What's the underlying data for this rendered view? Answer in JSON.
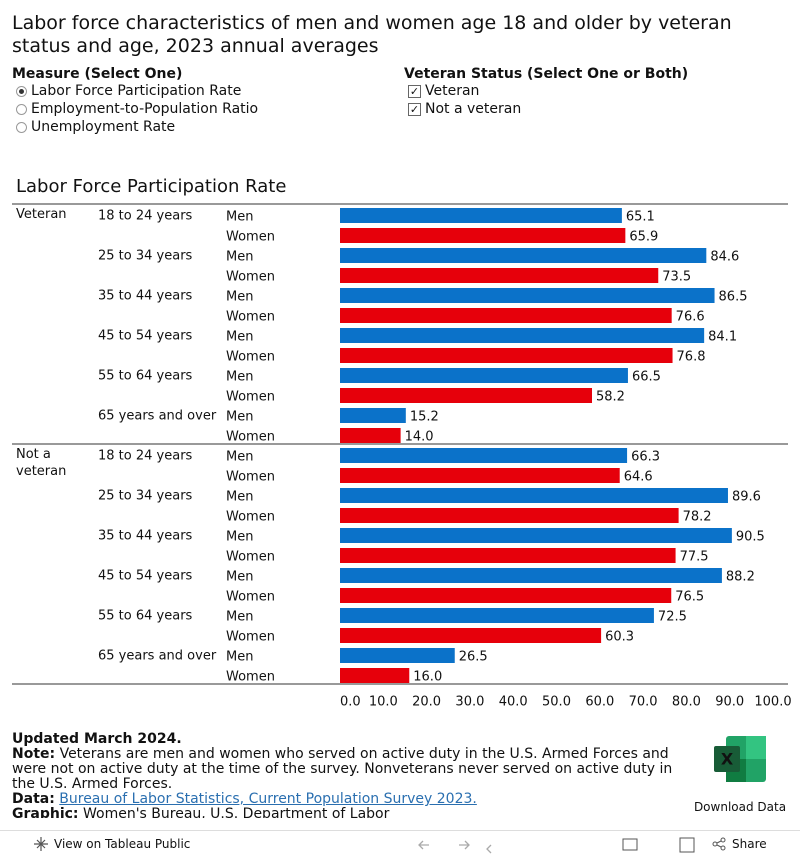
{
  "header": {
    "title": "Labor force characteristics of men and women age 18 and older by veteran status and age, 2023 annual averages"
  },
  "filters": {
    "measure": {
      "label": "Measure (Select One)",
      "options": [
        "Labor Force Participation Rate",
        "Employment-to-Population Ratio",
        "Unemployment Rate"
      ],
      "selected": 0
    },
    "veteran_status": {
      "label": "Veteran Status (Select One or Both)",
      "options": [
        {
          "label": "Veteran",
          "checked": true
        },
        {
          "label": "Not a veteran",
          "checked": true
        }
      ]
    }
  },
  "chart_data": {
    "type": "bar",
    "orientation": "horizontal",
    "title": "Labor Force Participation Rate",
    "colors": [
      "#0b72c9",
      "#e6000b"
    ],
    "xlim": [
      0,
      100
    ],
    "xticks": [
      {
        "value": 0,
        "label": "0.0"
      },
      {
        "value": 10,
        "label": "10.0"
      },
      {
        "value": 20,
        "label": "20.0"
      },
      {
        "value": 30,
        "label": "30.0"
      },
      {
        "value": 40,
        "label": "40.0"
      },
      {
        "value": 50,
        "label": "50.0"
      },
      {
        "value": 60,
        "label": "60.0"
      },
      {
        "value": 70,
        "label": "70.0"
      },
      {
        "value": 80,
        "label": "80.0"
      },
      {
        "value": 90,
        "label": "90.0"
      },
      {
        "value": 100,
        "label": "100.0"
      }
    ],
    "groups": [
      {
        "label": "Veteran",
        "ages": [
          {
            "label": "18 to 24 years",
            "categories": [
              "Men",
              "Women"
            ],
            "values": [
              65.1,
              65.9
            ],
            "value_labels": [
              "65.1",
              "65.9"
            ]
          },
          {
            "label": "25 to 34 years",
            "categories": [
              "Men",
              "Women"
            ],
            "values": [
              84.6,
              73.5
            ],
            "value_labels": [
              "84.6",
              "73.5"
            ]
          },
          {
            "label": "35 to 44 years",
            "categories": [
              "Men",
              "Women"
            ],
            "values": [
              86.5,
              76.6
            ],
            "value_labels": [
              "86.5",
              "76.6"
            ]
          },
          {
            "label": "45 to 54 years",
            "categories": [
              "Men",
              "Women"
            ],
            "values": [
              84.1,
              76.8
            ],
            "value_labels": [
              "84.1",
              "76.8"
            ]
          },
          {
            "label": "55 to 64 years",
            "categories": [
              "Men",
              "Women"
            ],
            "values": [
              66.5,
              58.2
            ],
            "value_labels": [
              "66.5",
              "58.2"
            ]
          },
          {
            "label": "65 years and over",
            "categories": [
              "Men",
              "Women"
            ],
            "values": [
              15.2,
              14.0
            ],
            "value_labels": [
              "15.2",
              "14.0"
            ]
          }
        ]
      },
      {
        "label": "Not a veteran",
        "ages": [
          {
            "label": "18 to 24 years",
            "categories": [
              "Men",
              "Women"
            ],
            "values": [
              66.3,
              64.6
            ],
            "value_labels": [
              "66.3",
              "64.6"
            ]
          },
          {
            "label": "25 to 34 years",
            "categories": [
              "Men",
              "Women"
            ],
            "values": [
              89.6,
              78.2
            ],
            "value_labels": [
              "89.6",
              "78.2"
            ]
          },
          {
            "label": "35 to 44 years",
            "categories": [
              "Men",
              "Women"
            ],
            "values": [
              90.5,
              77.5
            ],
            "value_labels": [
              "90.5",
              "77.5"
            ]
          },
          {
            "label": "45 to 54 years",
            "categories": [
              "Men",
              "Women"
            ],
            "values": [
              88.2,
              76.5
            ],
            "value_labels": [
              "88.2",
              "76.5"
            ]
          },
          {
            "label": "55 to 64 years",
            "categories": [
              "Men",
              "Women"
            ],
            "values": [
              72.5,
              60.3
            ],
            "value_labels": [
              "72.5",
              "60.3"
            ]
          },
          {
            "label": "65 years and over",
            "categories": [
              "Men",
              "Women"
            ],
            "values": [
              26.5,
              16.0
            ],
            "value_labels": [
              "26.5",
              "16.0"
            ]
          }
        ]
      }
    ]
  },
  "footer": {
    "updated": "Updated March 2024.",
    "note_label": "Note:",
    "note": "Veterans are men and women who served on active duty in the U.S. Armed Forces and were not on active duty at the time of the survey. Nonveterans never served on active duty in the U.S. Armed Forces.",
    "data_label": "Data:",
    "data_link": "Bureau of Labor Statistics, Current Population Survey 2023.",
    "graphic_label": "Graphic:",
    "graphic": "Women's Bureau, U.S. Department of Labor"
  },
  "download": "Download Data",
  "toolbar": {
    "view": "View on Tableau Public",
    "share": "Share"
  }
}
